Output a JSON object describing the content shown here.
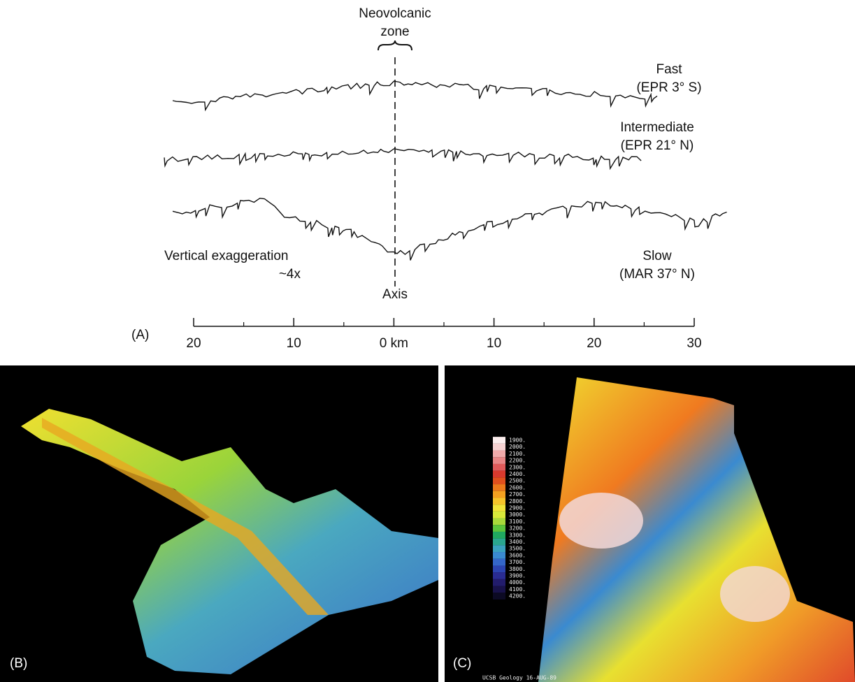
{
  "panel_a": {
    "label": "(A)",
    "zone_label": [
      "Neovolcanic",
      "zone"
    ],
    "profiles": [
      {
        "name": "Fast",
        "location": "(EPR 3° S)"
      },
      {
        "name": "Intermediate",
        "location": "(EPR 21° N)"
      },
      {
        "name": "Slow",
        "location": "(MAR 37° N)"
      }
    ],
    "exaggeration": [
      "Vertical exaggeration",
      "~4x"
    ],
    "axis_label": "Axis",
    "scale": {
      "xlim": [
        -20,
        30
      ],
      "xticks": [
        {
          "value": -20,
          "label": "20"
        },
        {
          "value": -10,
          "label": "10"
        },
        {
          "value": 0,
          "label": "0 km"
        },
        {
          "value": 10,
          "label": "10"
        },
        {
          "value": 20,
          "label": "20"
        },
        30
      ],
      "minor_ticks": [
        -15,
        -5,
        5,
        15,
        25
      ]
    }
  },
  "panel_b": {
    "label": "(B)"
  },
  "panel_c": {
    "label": "(C)",
    "footer": "UCSB Geology 16-AUG-89",
    "colorbar": [
      {
        "label": "1900.",
        "color": "#fbeeee"
      },
      {
        "label": "2000.",
        "color": "#f6d2d2"
      },
      {
        "label": "2100.",
        "color": "#f0aaaa"
      },
      {
        "label": "2200.",
        "color": "#e98686"
      },
      {
        "label": "2300.",
        "color": "#e05a5a"
      },
      {
        "label": "2400.",
        "color": "#d83a2e"
      },
      {
        "label": "2500.",
        "color": "#e0501e"
      },
      {
        "label": "2600.",
        "color": "#ec7a1c"
      },
      {
        "label": "2700.",
        "color": "#f3a020"
      },
      {
        "label": "2800.",
        "color": "#f6c42a"
      },
      {
        "label": "2900.",
        "color": "#f2e43a"
      },
      {
        "label": "3000.",
        "color": "#d8e83a"
      },
      {
        "label": "3100.",
        "color": "#a8d83a"
      },
      {
        "label": "3200.",
        "color": "#5cc43c"
      },
      {
        "label": "3300.",
        "color": "#20a860"
      },
      {
        "label": "3400.",
        "color": "#2aa68e"
      },
      {
        "label": "3500.",
        "color": "#3aa2be"
      },
      {
        "label": "3600.",
        "color": "#3a8ad0"
      },
      {
        "label": "3700.",
        "color": "#3466c8"
      },
      {
        "label": "3800.",
        "color": "#2c44b0"
      },
      {
        "label": "3900.",
        "color": "#2a2c92"
      },
      {
        "label": "4000.",
        "color": "#221c6c"
      },
      {
        "label": "4100.",
        "color": "#18124a"
      },
      {
        "label": "4200.",
        "color": "#0c0a24"
      }
    ]
  }
}
